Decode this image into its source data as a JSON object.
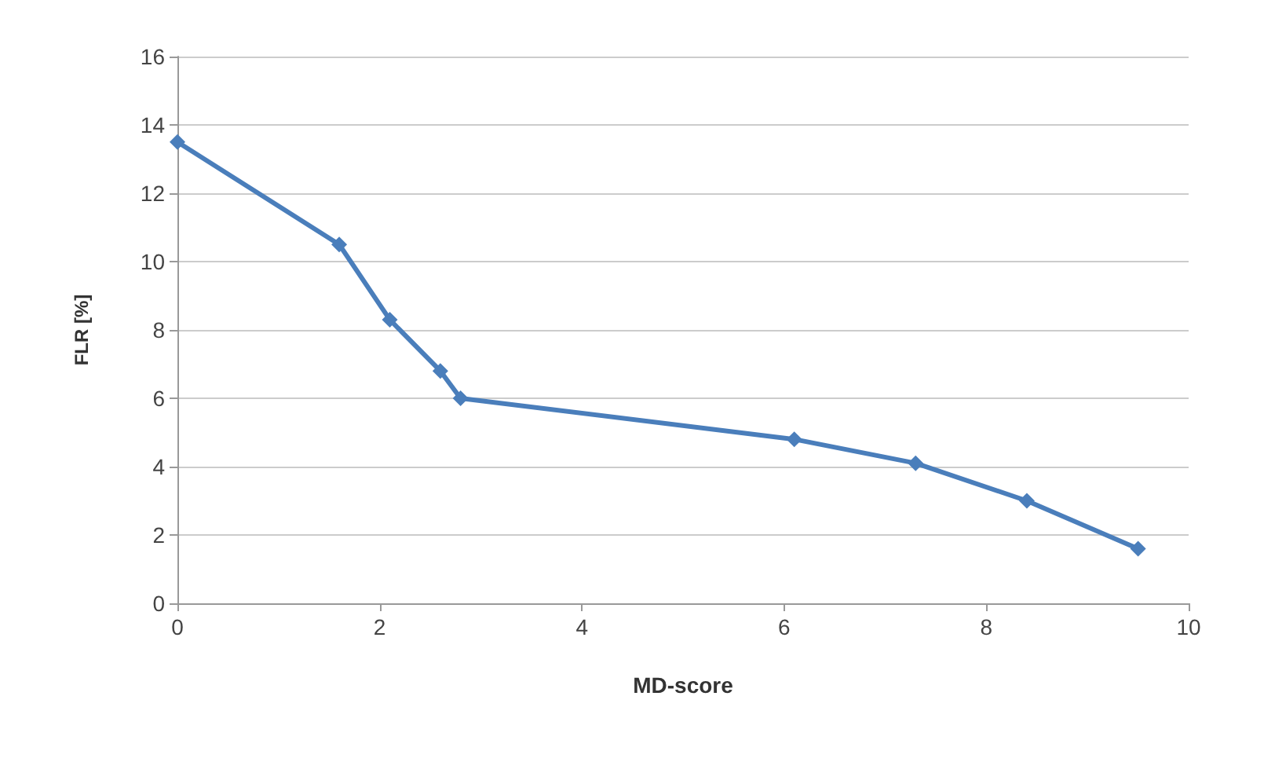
{
  "chart_data": {
    "type": "line",
    "xlabel": "MD-score",
    "ylabel": "FLR [%]",
    "x": [
      0,
      1.6,
      2.1,
      2.6,
      2.8,
      6.1,
      7.3,
      8.4,
      9.5
    ],
    "series": [
      {
        "color": "#4a7ebb",
        "values": [
          13.5,
          10.5,
          8.3,
          6.8,
          6.0,
          4.8,
          4.1,
          3.0,
          1.6
        ]
      }
    ],
    "xlim": [
      0,
      10
    ],
    "xticks": [
      0,
      2,
      4,
      6,
      8,
      10
    ],
    "ylim": [
      0,
      16
    ],
    "yticks": [
      0,
      2,
      4,
      6,
      8,
      10,
      12,
      14,
      16
    ],
    "grid": "y",
    "marker": "diamond",
    "line_style": "solid"
  }
}
